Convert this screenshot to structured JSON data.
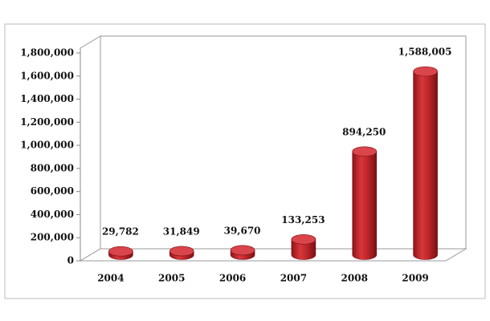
{
  "chart_data": {
    "type": "bar3d",
    "categories": [
      "2004",
      "2005",
      "2006",
      "2007",
      "2008",
      "2009"
    ],
    "values": [
      29782,
      31849,
      39670,
      133253,
      894250,
      1588005
    ],
    "value_labels": [
      "29,782",
      "31,849",
      "39,670",
      "133,253",
      "894,250",
      "1,588,005"
    ],
    "color": "#c0282c",
    "ylim": [
      0,
      1800000
    ],
    "yticks": [
      0,
      {
        "value": 200000,
        "label": "200,000"
      },
      {
        "value": 400000,
        "label": "400,000"
      },
      {
        "value": 600000,
        "label": "600,000"
      },
      {
        "value": 800000,
        "label": "800,000"
      },
      {
        "value": 1000000,
        "label": "1,000,000"
      },
      {
        "value": 1200000,
        "label": "1,200,000"
      },
      {
        "value": 1400000,
        "label": "1,400,000"
      },
      {
        "value": 1600000,
        "label": "1,600,000"
      },
      {
        "value": 1800000,
        "label": "1,800,000"
      }
    ]
  }
}
